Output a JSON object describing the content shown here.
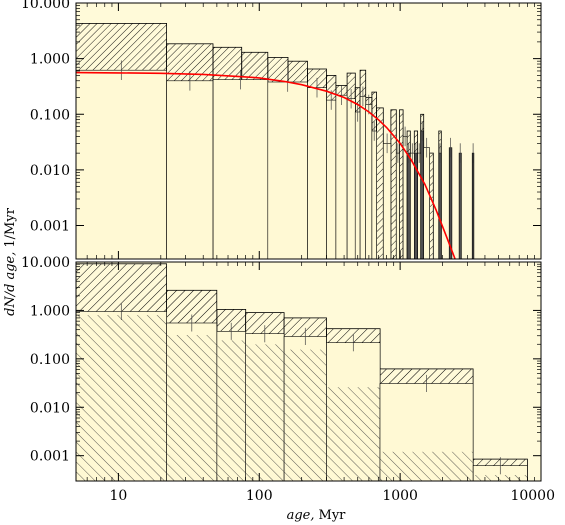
{
  "chart_data": [
    {
      "type": "bar",
      "panel": "top",
      "yscale": "log",
      "xscale": "log",
      "xlim": [
        5,
        10000
      ],
      "ylim": [
        0.00025,
        10
      ],
      "y_ticks": [
        "10.000",
        "1.000",
        "0.100",
        "0.010",
        "0.001"
      ],
      "y_tick_values": [
        10,
        1,
        0.1,
        0.01,
        0.001
      ],
      "grid": false,
      "series": [
        {
          "style": "hatched-outline",
          "bins": [
            {
              "x0": 5,
              "x1": 22,
              "y": 4.3
            },
            {
              "x0": 22,
              "x1": 47,
              "y": 1.85
            },
            {
              "x0": 47,
              "x1": 75,
              "y": 1.6
            },
            {
              "x0": 75,
              "x1": 115,
              "y": 1.3
            },
            {
              "x0": 115,
              "x1": 160,
              "y": 1.05
            },
            {
              "x0": 160,
              "x1": 220,
              "y": 0.9
            },
            {
              "x0": 220,
              "x1": 300,
              "y": 0.65
            },
            {
              "x0": 300,
              "x1": 350,
              "y": 0.5
            },
            {
              "x0": 350,
              "x1": 420,
              "y": 0.33
            },
            {
              "x0": 420,
              "x1": 480,
              "y": 0.55
            },
            {
              "x0": 480,
              "x1": 520,
              "y": 0.3
            },
            {
              "x0": 520,
              "x1": 570,
              "y": 0.62
            },
            {
              "x0": 570,
              "x1": 630,
              "y": 0.2
            },
            {
              "x0": 630,
              "x1": 680,
              "y": 0.25
            },
            {
              "x0": 680,
              "x1": 760,
              "y": 0.13
            },
            {
              "x0": 860,
              "x1": 940,
              "y": 0.12
            },
            {
              "x0": 990,
              "x1": 1050,
              "y": 0.12
            },
            {
              "x0": 1120,
              "x1": 1180,
              "y": 0.05
            },
            {
              "x0": 1260,
              "x1": 1330,
              "y": 0.05
            },
            {
              "x0": 1400,
              "x1": 1470,
              "y": 0.1
            },
            {
              "x0": 1620,
              "x1": 1720,
              "y": 0.02
            },
            {
              "x0": 1880,
              "x1": 1960,
              "y": 0.05
            }
          ]
        },
        {
          "style": "filled",
          "color": "#fff9d4",
          "bins": [
            {
              "x0": 5,
              "x1": 22,
              "y": 0.62
            },
            {
              "x0": 22,
              "x1": 47,
              "y": 0.4
            },
            {
              "x0": 47,
              "x1": 115,
              "y": 0.42
            },
            {
              "x0": 115,
              "x1": 220,
              "y": 0.38
            },
            {
              "x0": 220,
              "x1": 300,
              "y": 0.3
            },
            {
              "x0": 300,
              "x1": 350,
              "y": 0.18
            },
            {
              "x0": 350,
              "x1": 420,
              "y": 0.22
            },
            {
              "x0": 420,
              "x1": 480,
              "y": 0.19
            },
            {
              "x0": 480,
              "x1": 520,
              "y": 0.11
            },
            {
              "x0": 520,
              "x1": 570,
              "y": 0.21
            },
            {
              "x0": 570,
              "x1": 630,
              "y": 0.15
            },
            {
              "x0": 630,
              "x1": 680,
              "y": 0.05
            },
            {
              "x0": 760,
              "x1": 860,
              "y": 0.03
            },
            {
              "x0": 940,
              "x1": 990,
              "y": 0.02
            },
            {
              "x0": 1050,
              "x1": 1120,
              "y": 0.04
            },
            {
              "x0": 1180,
              "x1": 1260,
              "y": 0.02
            },
            {
              "x0": 1330,
              "x1": 1400,
              "y": 0.02
            },
            {
              "x0": 1470,
              "x1": 1620,
              "y": 0.025
            }
          ]
        },
        {
          "style": "dark-bars",
          "color": "#505050",
          "bins": [
            {
              "x0": 1120,
              "x1": 1180,
              "y": 0.02
            },
            {
              "x0": 1260,
              "x1": 1330,
              "y": 0.02
            },
            {
              "x0": 1400,
              "x1": 1470,
              "y": 0.05
            },
            {
              "x0": 1880,
              "x1": 1960,
              "y": 0.02
            },
            {
              "x0": 2230,
              "x1": 2330,
              "y": 0.025
            },
            {
              "x0": 2620,
              "x1": 2720,
              "y": 0.02
            },
            {
              "x0": 3250,
              "x1": 3340,
              "y": 0.02
            }
          ]
        },
        {
          "style": "line",
          "color": "#ff0000",
          "x": [
            5,
            10,
            20,
            40,
            70,
            100,
            150,
            200,
            300,
            400,
            500,
            600,
            700,
            800,
            1000,
            1200,
            1500,
            1800,
            2100,
            2400,
            2600
          ],
          "y": [
            0.56,
            0.555,
            0.545,
            0.52,
            0.48,
            0.45,
            0.39,
            0.34,
            0.26,
            0.2,
            0.15,
            0.11,
            0.08,
            0.058,
            0.03,
            0.015,
            0.0055,
            0.0019,
            0.0007,
            0.00029,
            0.00017
          ]
        }
      ]
    },
    {
      "type": "bar",
      "panel": "bottom",
      "yscale": "log",
      "xscale": "log",
      "xlim": [
        5,
        10000
      ],
      "ylim": [
        0.0003,
        10
      ],
      "y_ticks": [
        "10.000",
        "1.000",
        "0.100",
        "0.010",
        "0.001"
      ],
      "y_tick_values": [
        10,
        1,
        0.1,
        0.01,
        0.001
      ],
      "x_ticks": [
        "10",
        "100",
        "1000",
        "10000"
      ],
      "x_tick_values": [
        10,
        100,
        1000,
        10000
      ],
      "grid": false,
      "series": [
        {
          "style": "hatched-outline",
          "bins": [
            {
              "x0": 5,
              "x1": 22,
              "y": 9.2
            },
            {
              "x0": 22,
              "x1": 50,
              "y": 2.6
            },
            {
              "x0": 50,
              "x1": 80,
              "y": 1.05
            },
            {
              "x0": 80,
              "x1": 150,
              "y": 0.9
            },
            {
              "x0": 150,
              "x1": 300,
              "y": 0.7
            },
            {
              "x0": 300,
              "x1": 720,
              "y": 0.42
            },
            {
              "x0": 720,
              "x1": 3300,
              "y": 0.062
            },
            {
              "x0": 3300,
              "x1": 8000,
              "y": 0.00085
            }
          ]
        },
        {
          "style": "filled",
          "color": "#fff9d4",
          "bins": [
            {
              "x0": 5,
              "x1": 22,
              "y": 0.95
            },
            {
              "x0": 22,
              "x1": 50,
              "y": 0.55
            },
            {
              "x0": 50,
              "x1": 80,
              "y": 0.37
            },
            {
              "x0": 80,
              "x1": 150,
              "y": 0.33
            },
            {
              "x0": 150,
              "x1": 300,
              "y": 0.29
            },
            {
              "x0": 300,
              "x1": 720,
              "y": 0.215
            },
            {
              "x0": 720,
              "x1": 3300,
              "y": 0.031
            },
            {
              "x0": 3300,
              "x1": 8000,
              "y": 0.00062
            }
          ]
        },
        {
          "style": "hatched-fill",
          "bins": [
            {
              "x0": 5,
              "x1": 22,
              "y": 0.8
            },
            {
              "x0": 22,
              "x1": 50,
              "y": 0.31
            },
            {
              "x0": 50,
              "x1": 80,
              "y": 0.24
            },
            {
              "x0": 80,
              "x1": 150,
              "y": 0.2
            },
            {
              "x0": 150,
              "x1": 300,
              "y": 0.155
            },
            {
              "x0": 300,
              "x1": 720,
              "y": 0.026
            },
            {
              "x0": 720,
              "x1": 3300,
              "y": 0.0012
            },
            {
              "x0": 3300,
              "x1": 8000,
              "y": 0.0004
            }
          ]
        }
      ]
    }
  ],
  "xlabel_italic": "age,",
  "xlabel_unit": "Myr",
  "ylabel_prefix": "dN/d",
  "ylabel_italic": "age,",
  "ylabel_unit": "1/Myr",
  "colors": {
    "background": "#fffad9",
    "fit_line": "#ff0000",
    "dark_bars": "#505050"
  }
}
